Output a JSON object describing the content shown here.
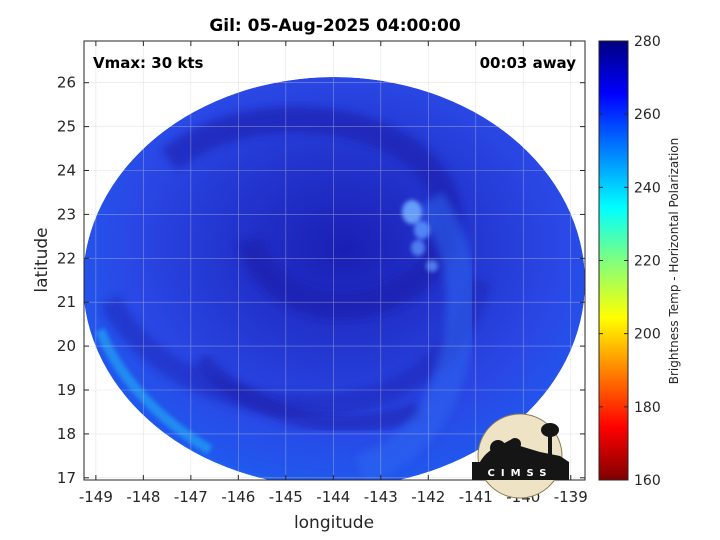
{
  "title": "Gil: 05-Aug-2025 04:00:00",
  "annotations": {
    "vmax": "Vmax: 30 kts",
    "time_offset": "00:03 away"
  },
  "axes": {
    "xlabel": "longitude",
    "ylabel": "latitude",
    "xlim": [
      -149.25,
      -138.7
    ],
    "ylim": [
      16.95,
      26.95
    ],
    "xticks": [
      "-149",
      "-148",
      "-147",
      "-146",
      "-145",
      "-144",
      "-143",
      "-142",
      "-141",
      "-140",
      "-139"
    ],
    "yticks": [
      "17",
      "18",
      "19",
      "20",
      "21",
      "22",
      "23",
      "24",
      "25",
      "26"
    ],
    "grid": true
  },
  "colorbar": {
    "label": "Brightness Temp - Horizontal Polarization",
    "range": [
      160,
      280
    ],
    "ticks": [
      "160",
      "180",
      "200",
      "220",
      "240",
      "260",
      "280"
    ],
    "colormap": "jet"
  },
  "logo": {
    "text": "CIMSS"
  },
  "swath": {
    "center_lon": -144.0,
    "center_lat": 21.9,
    "background_temp_K": 265,
    "eye_feature_lon": -142.5,
    "eye_feature_lat": 22.5
  },
  "colors": {
    "deep_blue": "#1a1fb0",
    "mid_blue": "#2a4ee8",
    "edge_blue": "#1e6ef0",
    "bright_feature": "#6fa8ff"
  }
}
